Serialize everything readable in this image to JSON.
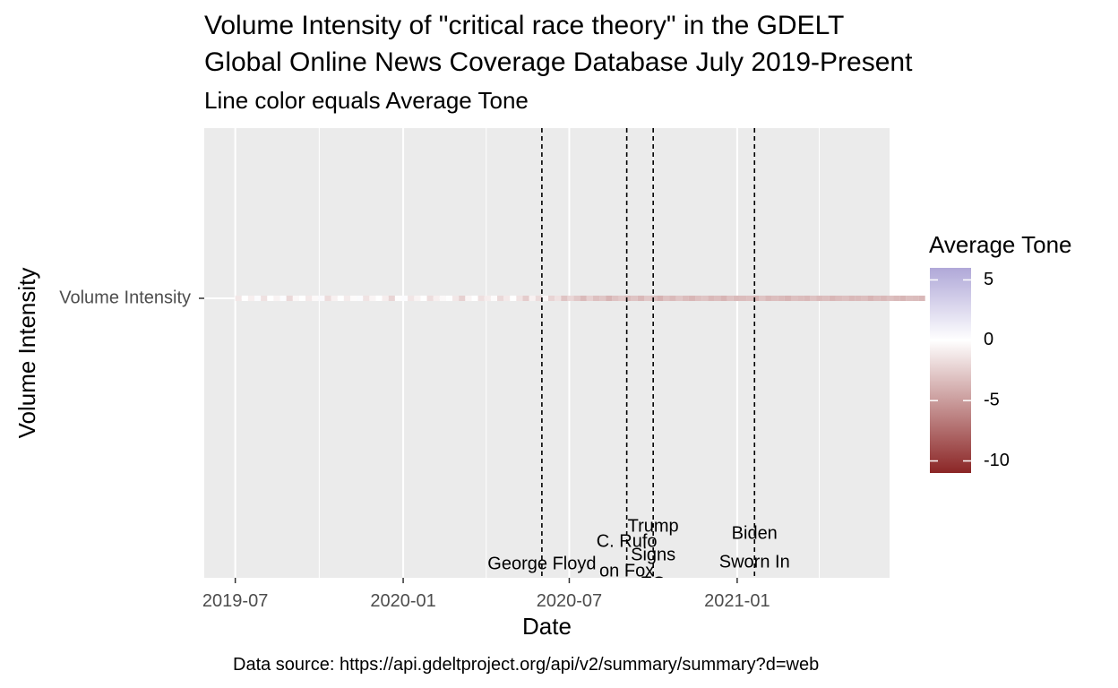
{
  "chart_data": {
    "type": "heatmap",
    "title_line1": "Volume Intensity of \"critical race theory\" in the GDELT",
    "title_line2": "Global Online News Coverage Database July 2019-Present",
    "subtitle": "Line color equals Average Tone",
    "xlabel": "Date",
    "ylabel": "Volume Intensity",
    "y_category": "Volume Intensity",
    "x_range": [
      "2019-05-28",
      "2021-06-17"
    ],
    "x_ticks": [
      "2019-07",
      "2020-01",
      "2020-07",
      "2021-01"
    ],
    "series_start": "2019-07-01",
    "tone_values": [
      -1.2,
      0,
      -0.8,
      0.3,
      -1.5,
      0,
      -0.6,
      0.2,
      -2.0,
      -0.4,
      0,
      -1.1,
      -0.3,
      0.4,
      -1.8,
      -0.7,
      0,
      -1.0,
      -0.2,
      0.3,
      -1.4,
      -0.5,
      0,
      -0.9,
      -2.2,
      -0.1,
      0.2,
      -1.3,
      -0.6,
      0,
      -1.7,
      -0.8,
      -0.3,
      0.1,
      -1.2,
      -2.4,
      -0.5,
      0,
      -1.6,
      -0.9,
      -0.2,
      -2.0,
      -1.1,
      0,
      -1.4,
      -2.6,
      -0.7,
      -1.9,
      -0.4,
      -2.2,
      -1.5,
      -3.0,
      -2.1,
      -2.8,
      -3.5,
      -2.4,
      -3.2,
      -2.9,
      -3.8,
      -3.1,
      -2.7,
      -3.4,
      -3.0,
      -3.6,
      -2.8,
      -3.3,
      -3.9,
      -3.1,
      -3.5,
      -2.9,
      -3.4,
      -3.7,
      -3.2,
      -3.0,
      -3.6,
      -3.3,
      -3.8,
      -3.1,
      -3.5,
      -3.4,
      -3.2,
      -3.7,
      -3.0,
      -3.6,
      -3.3,
      -3.5,
      -3.8,
      -3.2,
      -3.4,
      -3.6,
      -3.1,
      -3.5,
      -3.3,
      -3.7,
      -3.4,
      -3.2,
      -3.6,
      -3.5,
      -3.3,
      -3.8,
      -3.4,
      -3.6,
      -3.2,
      -3.5,
      -3.7,
      -3.3,
      -3.4,
      -3.6
    ],
    "events": [
      {
        "date": "2020-06-01",
        "label_lines": [
          "George Floyd"
        ]
      },
      {
        "date": "2020-09-02",
        "label_lines": [
          "C. Rufo",
          "on Fox"
        ]
      },
      {
        "date": "2020-10-01",
        "label_lines": [
          "Trump",
          "Signs",
          "EO"
        ]
      },
      {
        "date": "2021-01-20",
        "label_lines": [
          "Biden",
          "Sworn In"
        ]
      }
    ],
    "legend": {
      "title": "Average Tone",
      "breaks": [
        "5",
        "0",
        "-5",
        "-10"
      ],
      "break_values": [
        5,
        0,
        -5,
        -10
      ],
      "min": -11,
      "max": 6,
      "colors": {
        "high": "#b0a8d8",
        "mid": "#ffffff",
        "low": "#8b2626"
      }
    },
    "grid": true,
    "panel_background": "#ebebeb"
  },
  "caption": "Data source: https://api.gdeltproject.org/api/v2/summary/summary?d=web"
}
